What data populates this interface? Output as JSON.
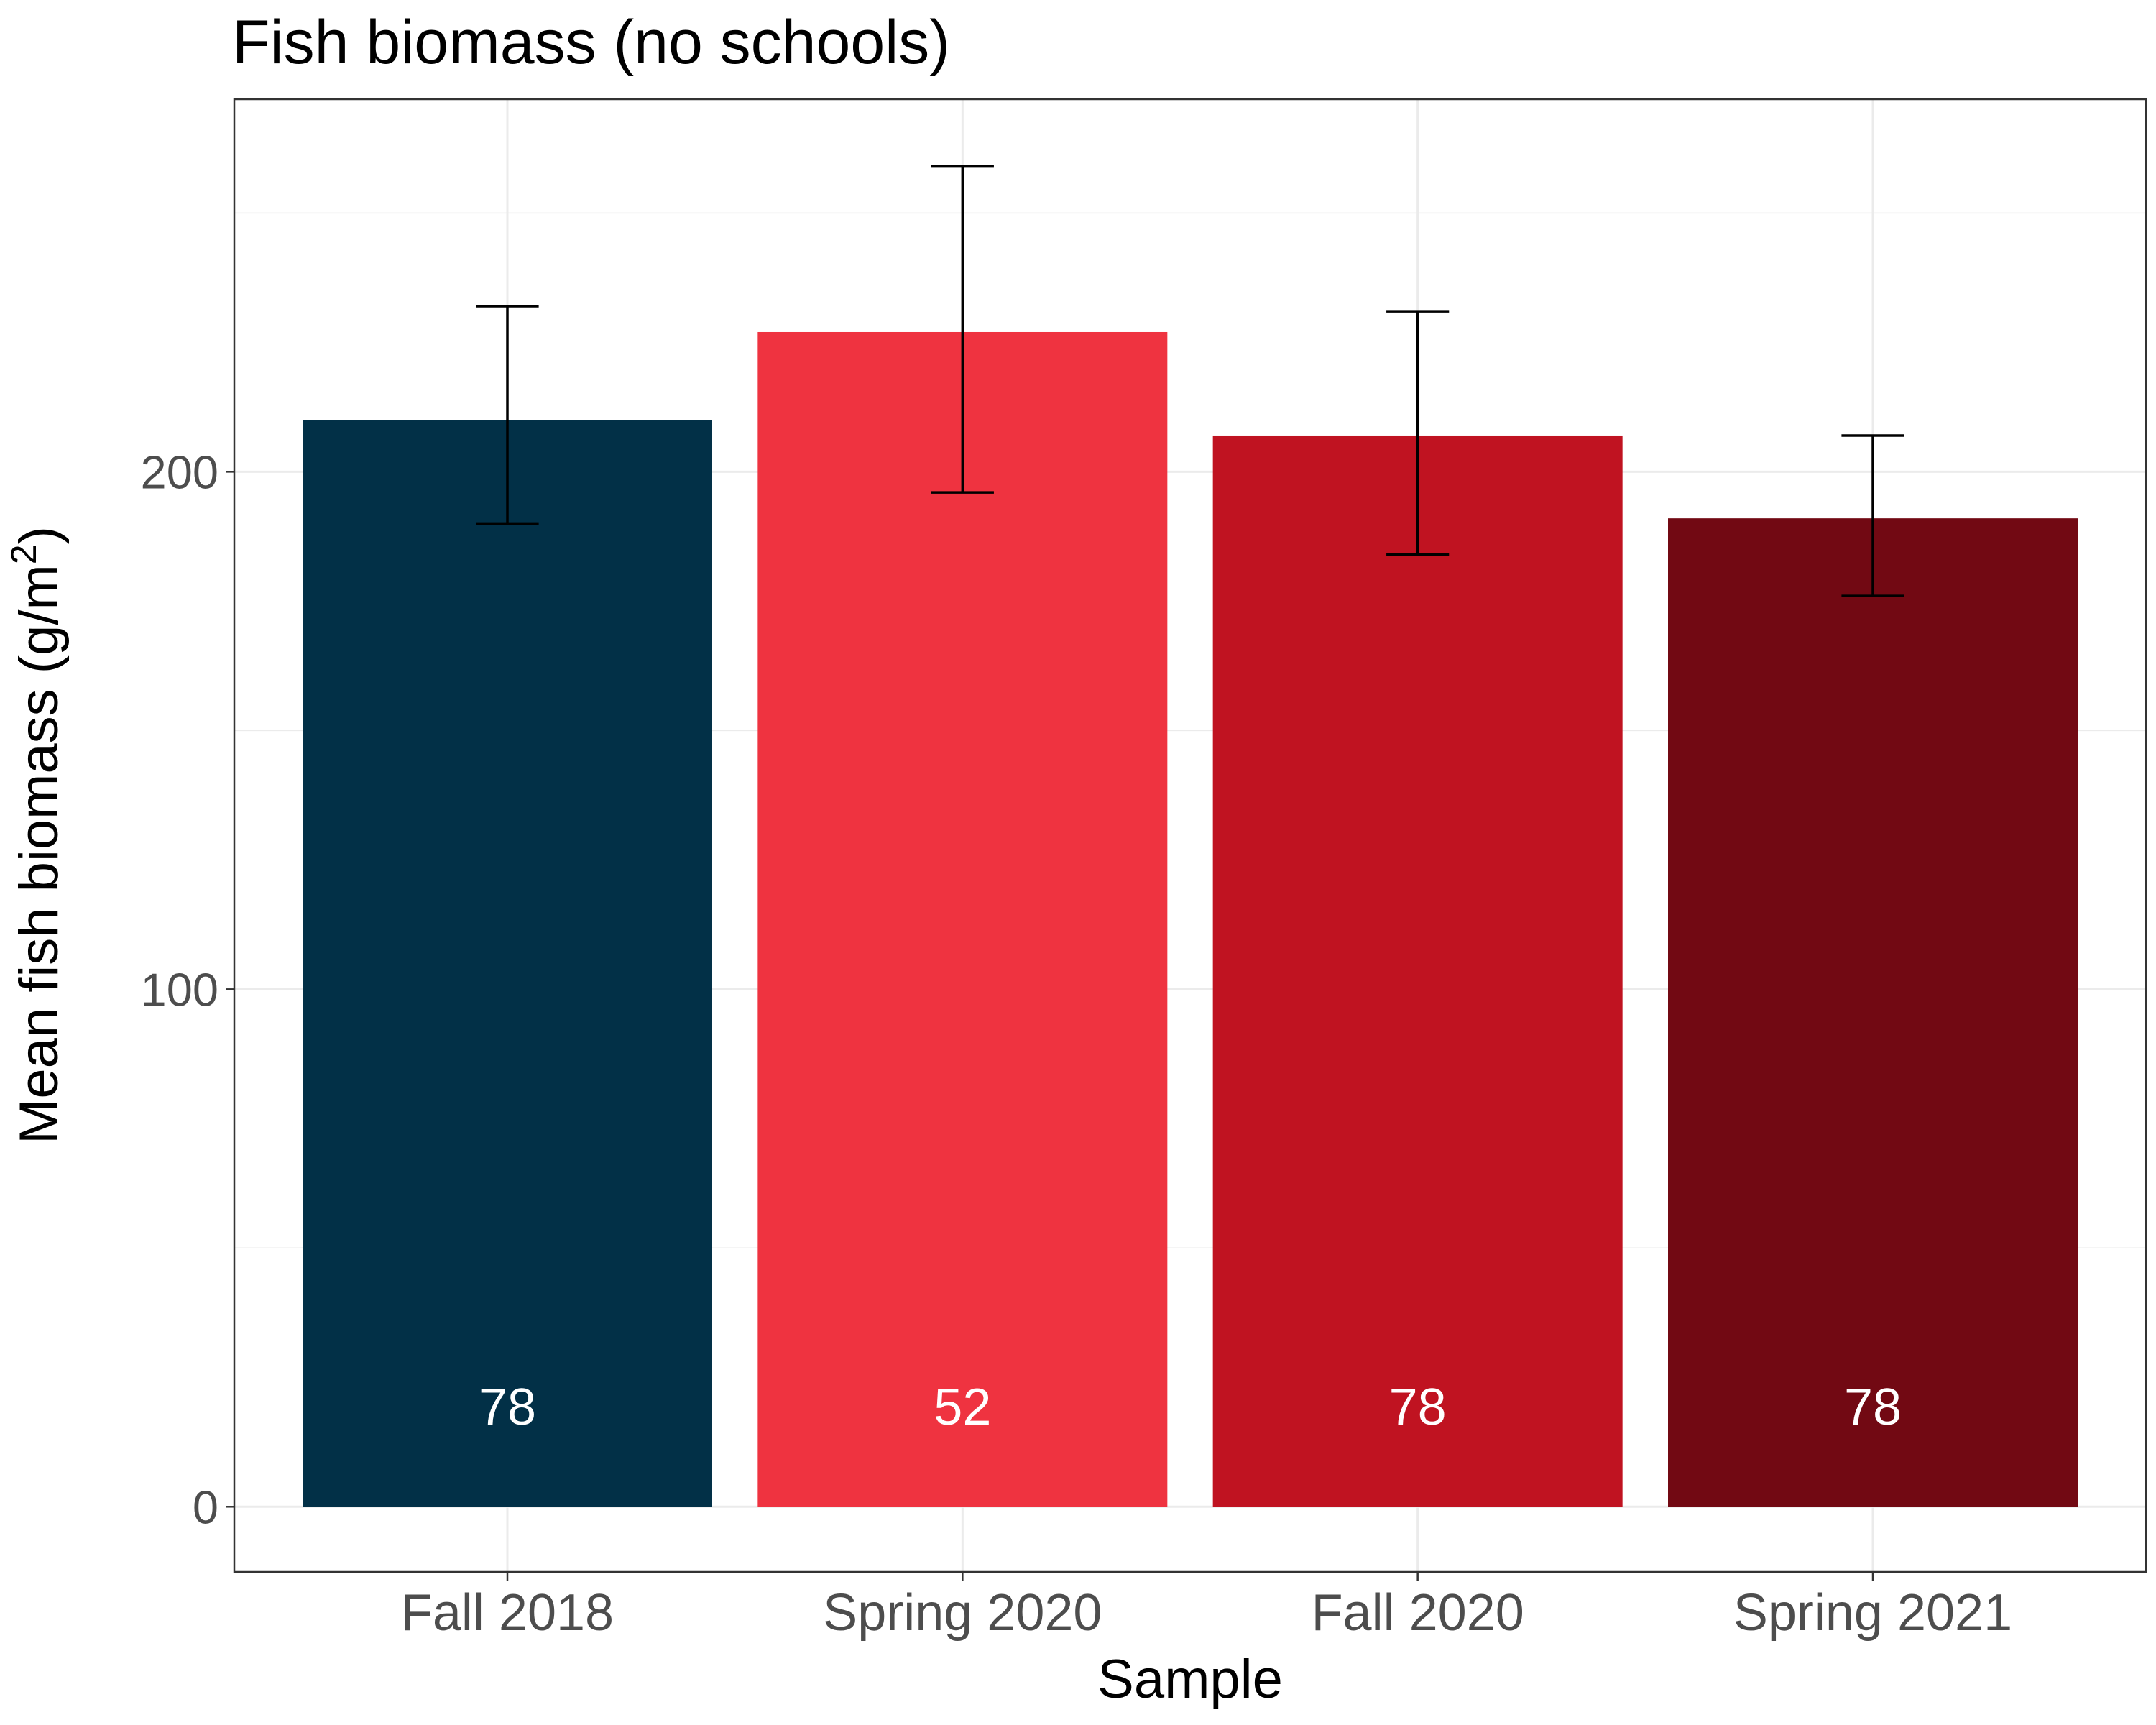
{
  "chart_data": {
    "type": "bar",
    "title": "Fish biomass (no schools)",
    "xlabel": "Sample",
    "ylabel_main": "Mean fish biomass (g/m",
    "ylabel_sup": "2",
    "ylabel_close": ")",
    "categories": [
      "Fall 2018",
      "Spring 2020",
      "Fall 2020",
      "Spring 2021"
    ],
    "values": [
      210,
      227,
      207,
      191
    ],
    "error_low": [
      190,
      196,
      184,
      176
    ],
    "error_high": [
      232,
      259,
      231,
      207
    ],
    "bar_labels": [
      "78",
      "52",
      "78",
      "78"
    ],
    "colors": [
      "#023047",
      "#ef3340",
      "#c01321",
      "#720913"
    ],
    "ylim": [
      -12.6,
      272
    ],
    "yticks": [
      0,
      100,
      200
    ],
    "ytick_labels": [
      "0",
      "100",
      "200"
    ],
    "grid": true,
    "legend": "none"
  }
}
